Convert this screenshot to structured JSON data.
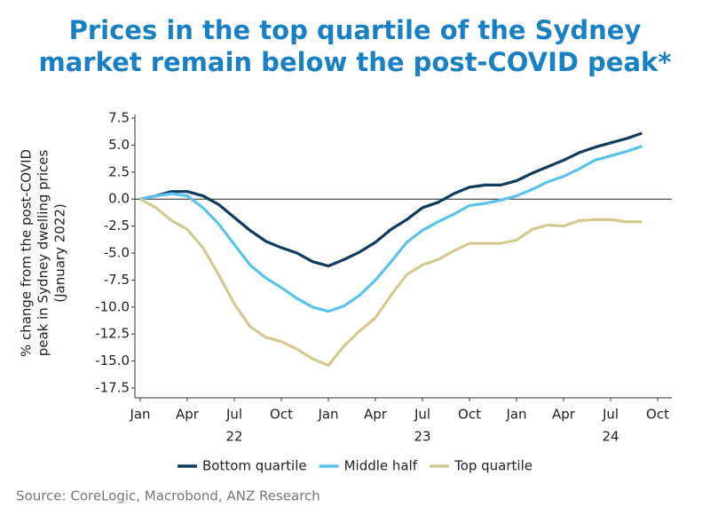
{
  "chart_data": {
    "type": "line",
    "title": [
      "Prices in the top quartile of the Sydney",
      "market remain below the post-COVID peak*"
    ],
    "ylabel": [
      "% change from the post-COVID",
      "peak in Sydney dwelling prices",
      "(January 2022)"
    ],
    "source": "Source: CoreLogic, Macrobond, ANZ Research",
    "categories": [
      "Jan",
      null,
      null,
      "Apr",
      null,
      null,
      "Jul",
      null,
      null,
      "Oct",
      null,
      null,
      "Jan",
      null,
      null,
      "Apr",
      null,
      null,
      "Jul",
      null,
      null,
      "Oct",
      null,
      null,
      "Jan",
      null,
      null,
      "Apr",
      null,
      null,
      "Jul",
      null,
      null,
      "Oct"
    ],
    "years": [
      "22",
      "23",
      "24"
    ],
    "ylim": [
      -17.5,
      7.5
    ],
    "yticks": [
      7.5,
      {
        "value": 5,
        "label": "5.0"
      },
      2.5,
      {
        "value": 0,
        "label": "0.0"
      },
      -2.5,
      {
        "value": -5,
        "label": "-5.0"
      },
      -7.5,
      {
        "value": -10,
        "label": "-10.0"
      },
      -12.5,
      {
        "value": -15,
        "label": "-15.0"
      },
      -17.5
    ],
    "zero_line": 0,
    "series": [
      {
        "name": "Bottom quartile",
        "color": "#0f3b5f",
        "values": [
          0,
          0.3,
          0.7,
          0.7,
          0.3,
          -0.5,
          -1.7,
          -2.9,
          -3.9,
          -4.5,
          -5.0,
          -5.8,
          -6.2,
          -5.6,
          -4.9,
          -4.0,
          -2.8,
          -1.9,
          -0.8,
          -0.3,
          0.5,
          1.1,
          1.3,
          1.3,
          1.7,
          2.4,
          3.0,
          3.6,
          4.3,
          4.8,
          5.2,
          5.6,
          6.1,
          null
        ]
      },
      {
        "name": "Middle half",
        "color": "#5bc2ea",
        "values": [
          0,
          0.3,
          0.5,
          0.3,
          -0.8,
          -2.3,
          -4.2,
          -6.1,
          -7.3,
          -8.2,
          -9.2,
          -10.0,
          -10.4,
          -9.9,
          -8.9,
          -7.5,
          -5.8,
          -4.0,
          -2.9,
          -2.1,
          -1.4,
          -0.6,
          -0.4,
          -0.1,
          0.3,
          0.9,
          1.6,
          2.1,
          2.8,
          3.6,
          4.0,
          4.4,
          4.9,
          null
        ]
      },
      {
        "name": "Top quartile",
        "color": "#d3ca90",
        "values": [
          0,
          -0.8,
          -2.0,
          -2.8,
          -4.5,
          -7.0,
          -9.7,
          -11.8,
          -12.8,
          -13.2,
          -13.9,
          -14.8,
          -15.4,
          -13.6,
          -12.2,
          -11.0,
          -8.9,
          -7.0,
          -6.1,
          -5.6,
          -4.8,
          -4.1,
          -4.1,
          -4.1,
          -3.8,
          -2.8,
          -2.4,
          -2.5,
          -2.0,
          -1.9,
          -1.9,
          -2.1,
          -2.1,
          null
        ]
      }
    ]
  }
}
